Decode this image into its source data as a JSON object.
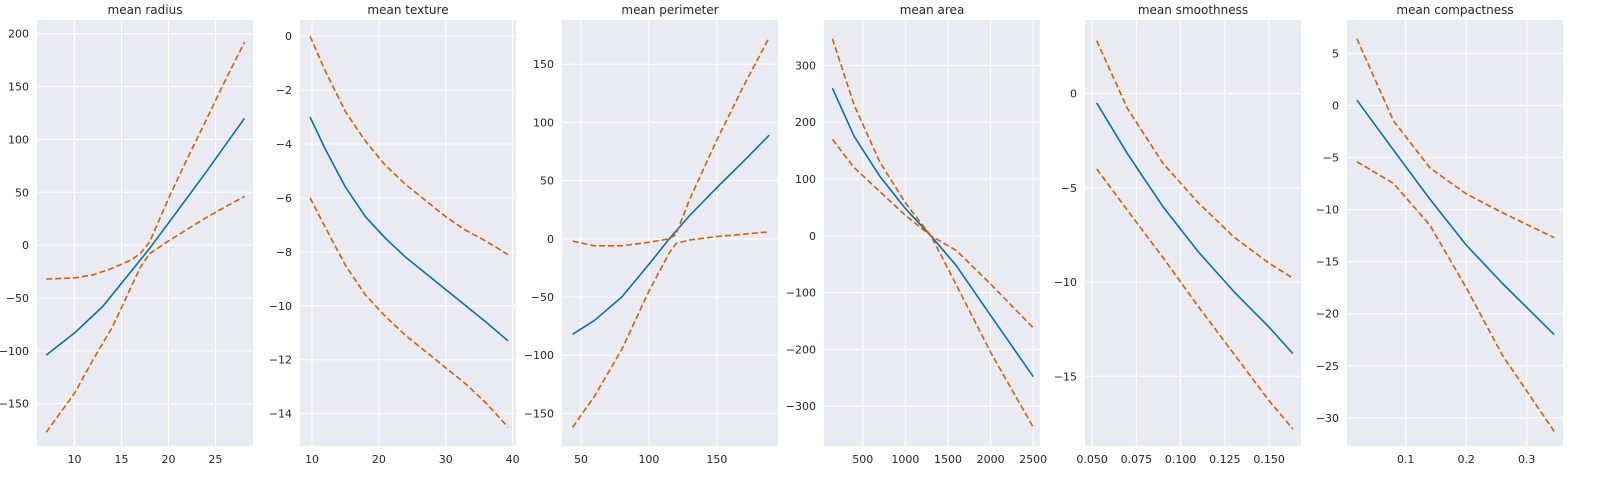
{
  "chart_data": [
    {
      "type": "line",
      "title": "mean radius",
      "xlim": [
        6,
        29
      ],
      "ylim": [
        -190,
        213
      ],
      "xticks": [
        10,
        15,
        20,
        25
      ],
      "yticks": [
        -150,
        -100,
        -50,
        0,
        50,
        100,
        150,
        200
      ],
      "series": [
        {
          "role": "center",
          "x": [
            6.98,
            10,
            13,
            16,
            18,
            20,
            22,
            24,
            26,
            28.1
          ],
          "y": [
            -104,
            -83,
            -58,
            -25,
            -3,
            21,
            45,
            69,
            94,
            120
          ]
        },
        {
          "role": "upper",
          "x": [
            6.98,
            10,
            12,
            14,
            16,
            17,
            18,
            20,
            22,
            24,
            26,
            28.1
          ],
          "y": [
            -32,
            -31,
            -28,
            -22,
            -14,
            -8,
            3,
            44,
            82,
            118,
            155,
            192
          ]
        },
        {
          "role": "lower",
          "x": [
            6.98,
            10,
            12,
            14,
            16,
            17,
            18,
            19,
            20,
            22,
            24,
            26,
            28.1
          ],
          "y": [
            -177,
            -140,
            -108,
            -78,
            -40,
            -21,
            -8,
            -2,
            4,
            15,
            26,
            36,
            46
          ]
        }
      ]
    },
    {
      "type": "line",
      "title": "mean texture",
      "xlim": [
        8.2,
        40.5
      ],
      "ylim": [
        -15.2,
        0.6
      ],
      "xticks": [
        10,
        20,
        30,
        40
      ],
      "yticks": [
        -14,
        -12,
        -10,
        -8,
        -6,
        -4,
        -2,
        0
      ],
      "series": [
        {
          "role": "center",
          "x": [
            9.71,
            12,
            15,
            18,
            21,
            24,
            27,
            30,
            33,
            36,
            39.3
          ],
          "y": [
            -3,
            -4.2,
            -5.6,
            -6.7,
            -7.5,
            -8.2,
            -8.8,
            -9.4,
            -10,
            -10.6,
            -11.3
          ]
        },
        {
          "role": "upper",
          "x": [
            9.71,
            12,
            15,
            18,
            21,
            24,
            27,
            30,
            33,
            36,
            39.3
          ],
          "y": [
            0,
            -1.3,
            -2.8,
            -3.9,
            -4.8,
            -5.5,
            -6.1,
            -6.7,
            -7.2,
            -7.6,
            -8.1
          ]
        },
        {
          "role": "lower",
          "x": [
            9.71,
            12,
            15,
            18,
            21,
            24,
            27,
            30,
            33,
            36,
            39.3
          ],
          "y": [
            -6,
            -7.1,
            -8.5,
            -9.6,
            -10.4,
            -11.1,
            -11.7,
            -12.3,
            -12.9,
            -13.6,
            -14.5
          ]
        }
      ]
    },
    {
      "type": "line",
      "title": "mean perimeter",
      "xlim": [
        36,
        195
      ],
      "ylim": [
        -178,
        188
      ],
      "xticks": [
        50,
        100,
        150
      ],
      "yticks": [
        -150,
        -100,
        -50,
        0,
        50,
        100,
        150
      ],
      "series": [
        {
          "role": "center",
          "x": [
            43.8,
            60,
            80,
            100,
            115,
            130,
            150,
            170,
            188.5
          ],
          "y": [
            -82,
            -70,
            -50,
            -22,
            0,
            20,
            44,
            67,
            89
          ]
        },
        {
          "role": "upper",
          "x": [
            43.8,
            60,
            80,
            100,
            115,
            120,
            130,
            150,
            170,
            188.5
          ],
          "y": [
            -2,
            -6,
            -6,
            -3,
            0,
            4,
            34,
            85,
            132,
            173
          ]
        },
        {
          "role": "lower",
          "x": [
            43.8,
            60,
            80,
            100,
            115,
            120,
            130,
            150,
            170,
            188.5
          ],
          "y": [
            -162,
            -135,
            -95,
            -45,
            -12,
            -4,
            -1,
            2,
            4,
            6
          ]
        }
      ]
    },
    {
      "type": "line",
      "title": "mean area",
      "xlim": [
        45,
        2580
      ],
      "ylim": [
        -370,
        380
      ],
      "xticks": [
        500,
        1000,
        1500,
        2000,
        2500
      ],
      "yticks": [
        -300,
        -200,
        -100,
        0,
        100,
        200,
        300
      ],
      "series": [
        {
          "role": "center",
          "x": [
            143.5,
            400,
            700,
            1000,
            1300,
            1600,
            2000,
            2501
          ],
          "y": [
            260,
            175,
            105,
            48,
            0,
            -53,
            -140,
            -248
          ]
        },
        {
          "role": "upper",
          "x": [
            143.5,
            400,
            700,
            1000,
            1300,
            1600,
            2000,
            2501
          ],
          "y": [
            347,
            230,
            130,
            58,
            0,
            -87,
            -205,
            -337
          ]
        },
        {
          "role": "lower",
          "x": [
            143.5,
            400,
            700,
            1000,
            1300,
            1600,
            2000,
            2501
          ],
          "y": [
            170,
            120,
            78,
            36,
            0,
            -26,
            -85,
            -162
          ]
        }
      ]
    },
    {
      "type": "line",
      "title": "mean smoothness",
      "xlim": [
        0.046,
        0.168
      ],
      "ylim": [
        -18.7,
        3.9
      ],
      "xticks": [
        0.05,
        0.075,
        0.1,
        0.125,
        0.15
      ],
      "xtick_labels": [
        "0.050",
        "0.075",
        "0.100",
        "0.125",
        "0.150"
      ],
      "yticks": [
        -15,
        -10,
        -5,
        0
      ],
      "series": [
        {
          "role": "center",
          "x": [
            0.0526,
            0.07,
            0.09,
            0.11,
            0.13,
            0.15,
            0.1634
          ],
          "y": [
            -0.5,
            -3.2,
            -6,
            -8.4,
            -10.5,
            -12.4,
            -13.8
          ]
        },
        {
          "role": "upper",
          "x": [
            0.0526,
            0.07,
            0.09,
            0.11,
            0.13,
            0.15,
            0.1634
          ],
          "y": [
            2.8,
            -0.8,
            -3.7,
            -5.8,
            -7.6,
            -9,
            -9.8
          ]
        },
        {
          "role": "lower",
          "x": [
            0.0526,
            0.07,
            0.09,
            0.11,
            0.13,
            0.15,
            0.1634
          ],
          "y": [
            -4,
            -6.2,
            -8.7,
            -11.3,
            -13.8,
            -16.3,
            -17.8
          ]
        }
      ]
    },
    {
      "type": "line",
      "title": "mean compactness",
      "xlim": [
        0.003,
        0.36
      ],
      "ylim": [
        -32.7,
        8.2
      ],
      "xticks": [
        0.1,
        0.2,
        0.3
      ],
      "yticks": [
        -30,
        -25,
        -20,
        -15,
        -10,
        -5,
        0,
        5
      ],
      "series": [
        {
          "role": "center",
          "x": [
            0.0194,
            0.08,
            0.14,
            0.2,
            0.26,
            0.3454
          ],
          "y": [
            0.5,
            -4.3,
            -9,
            -13.4,
            -17.1,
            -22
          ]
        },
        {
          "role": "upper",
          "x": [
            0.0194,
            0.08,
            0.14,
            0.2,
            0.26,
            0.3454
          ],
          "y": [
            6.4,
            -1.5,
            -6,
            -8.5,
            -10.3,
            -12.7
          ]
        },
        {
          "role": "lower",
          "x": [
            0.0194,
            0.08,
            0.14,
            0.2,
            0.26,
            0.3454
          ],
          "y": [
            -5.4,
            -7.5,
            -11.5,
            -17.5,
            -24,
            -31.3
          ]
        }
      ]
    }
  ],
  "style": {
    "axes_bg": "#eaeaf2",
    "grid_color": "#ffffff",
    "center_color": "#0072b2",
    "band_color": "#d55e00",
    "text_color": "#262626"
  }
}
